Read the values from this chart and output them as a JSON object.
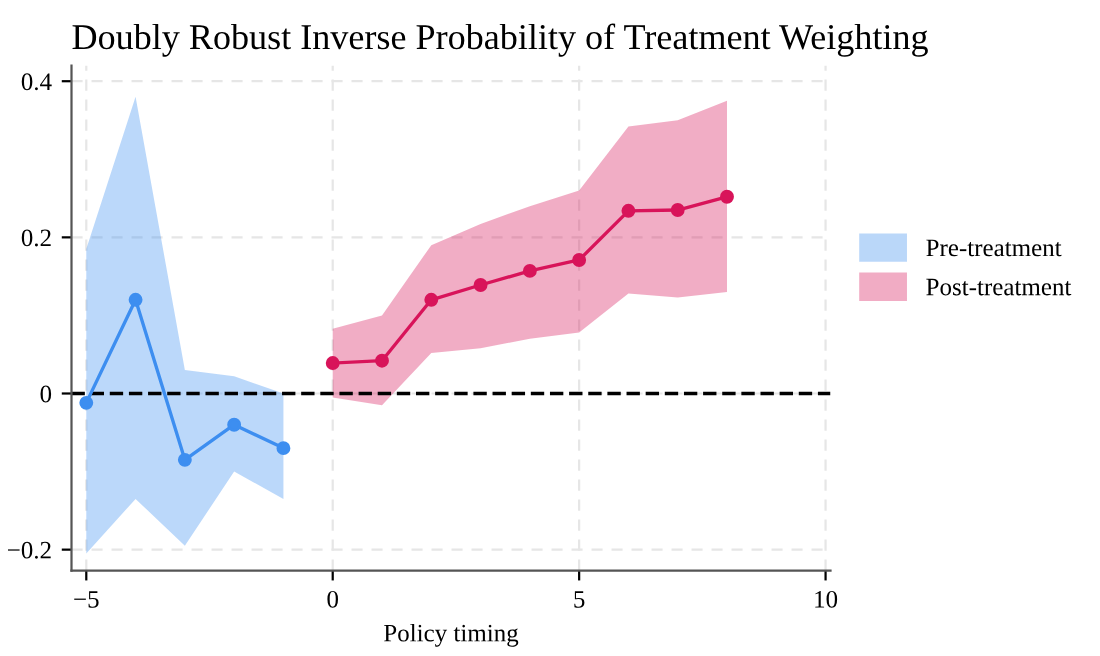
{
  "chart_data": {
    "type": "line",
    "title": "Doubly Robust Inverse Probability of Treatment Weighting",
    "xlabel": "Policy timing",
    "series": [
      {
        "name": "Pre-treatment",
        "color": "#3d8ef0",
        "x": [
          -5,
          -4,
          -3,
          -2,
          -1
        ],
        "values": [
          -0.012,
          0.12,
          -0.085,
          -0.04,
          -0.07
        ],
        "lower": [
          -0.205,
          -0.135,
          -0.195,
          -0.1,
          -0.135
        ],
        "upper": [
          0.185,
          0.38,
          0.03,
          0.022,
          0.0
        ]
      },
      {
        "name": "Post-treatment",
        "color": "#d8145a",
        "x": [
          0,
          1,
          2,
          3,
          4,
          5,
          6,
          7,
          8
        ],
        "values": [
          0.039,
          0.042,
          0.12,
          0.139,
          0.157,
          0.171,
          0.234,
          0.235,
          0.252
        ],
        "lower": [
          -0.005,
          -0.015,
          0.052,
          0.058,
          0.07,
          0.078,
          0.128,
          0.123,
          0.13
        ],
        "upper": [
          0.083,
          0.1,
          0.19,
          0.217,
          0.24,
          0.26,
          0.342,
          0.35,
          0.375
        ]
      }
    ],
    "xlim": [
      -5.3,
      10.1
    ],
    "ylim": [
      -0.227,
      0.42
    ],
    "xticks": [
      {
        "value": -5,
        "label": "−5"
      },
      0,
      5,
      10
    ],
    "yticks": [
      {
        "value": -0.2,
        "label": "−0.2"
      },
      0,
      0.2,
      0.4
    ],
    "ref_lines": [
      {
        "axis": "y",
        "value": 0,
        "color": "#000000",
        "line_style": "dashed"
      }
    ],
    "grid": true,
    "legend": "right",
    "marker": "circle",
    "line_style": "solid"
  }
}
